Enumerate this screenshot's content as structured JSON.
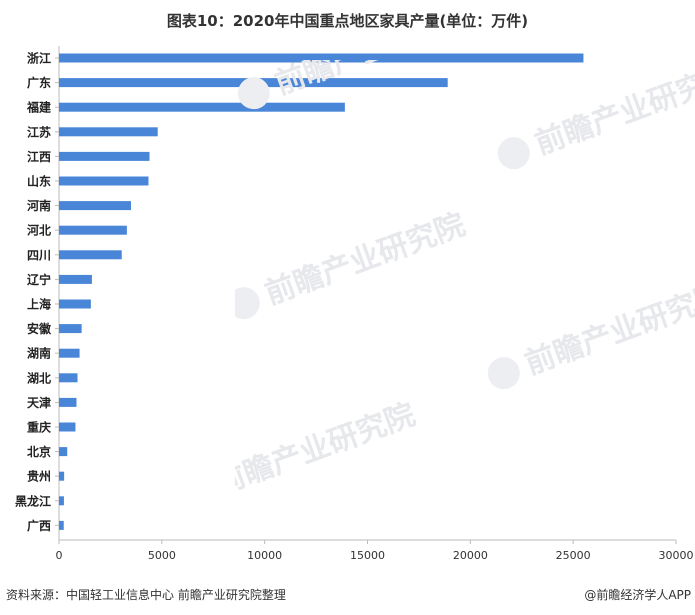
{
  "chart_data": {
    "type": "bar",
    "orientation": "horizontal",
    "title": "图表10：2020年中国重点地区家具产量(单位：万件)",
    "categories": [
      "浙江",
      "广东",
      "福建",
      "江苏",
      "江西",
      "山东",
      "河南",
      "河北",
      "四川",
      "辽宁",
      "上海",
      "安徽",
      "湖南",
      "湖北",
      "天津",
      "重庆",
      "北京",
      "贵州",
      "黑龙江",
      "广西"
    ],
    "values": [
      25500,
      18900,
      13900,
      4800,
      4400,
      4350,
      3500,
      3300,
      3050,
      1600,
      1550,
      1100,
      1000,
      900,
      850,
      800,
      400,
      250,
      240,
      230
    ],
    "xlim": [
      0,
      30000
    ],
    "xticks": [
      "0",
      "5000",
      "10000",
      "15000",
      "20000",
      "25000",
      "30000"
    ],
    "bar_color": "#4a86d8",
    "grid": false,
    "legend": "none"
  },
  "footer": {
    "source": "资料来源：中国轻工业信息中心 前瞻产业研究院整理",
    "brand": "@前瞻经济学人APP"
  },
  "watermark": {
    "text": "前瞻产业研究院"
  }
}
